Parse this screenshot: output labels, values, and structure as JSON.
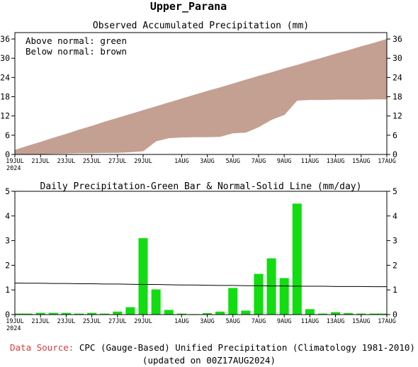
{
  "page": {
    "region_title": "Upper_Parana",
    "footer_source_label": "Data Source:",
    "footer_source_text": "CPC (Gauge-Based) Unified Precipitation (Climatology 1981-2010)",
    "footer_updated": "(updated on 00Z17AUG2024)"
  },
  "colors": {
    "above_normal": "#00dd00",
    "below_normal": "#c4a092",
    "daily_bar": "#11dd11",
    "normal_line": "#000000",
    "source_label": "#e03a3a"
  },
  "chart_data": [
    {
      "type": "area",
      "title": "Observed Accumulated Precipitation (mm)",
      "legend_lines": [
        "Above normal: green",
        "Below normal: brown"
      ],
      "legend_position": "top-left",
      "x_ticks": [
        "19JUL",
        "21JUL",
        "23JUL",
        "25JUL",
        "27JUL",
        "29JUL",
        "1AUG",
        "3AUG",
        "5AUG",
        "7AUG",
        "9AUG",
        "11AUG",
        "13AUG",
        "15AUG",
        "17AUG"
      ],
      "x_year_label": "2024",
      "ylim": [
        0,
        38
      ],
      "y_ticks": [
        0,
        6,
        12,
        18,
        24,
        30,
        36
      ],
      "grid": false,
      "x": [
        "19JUL",
        "20JUL",
        "21JUL",
        "22JUL",
        "23JUL",
        "24JUL",
        "25JUL",
        "26JUL",
        "27JUL",
        "28JUL",
        "29JUL",
        "30JUL",
        "31JUL",
        "1AUG",
        "2AUG",
        "3AUG",
        "4AUG",
        "5AUG",
        "6AUG",
        "7AUG",
        "8AUG",
        "9AUG",
        "10AUG",
        "11AUG",
        "12AUG",
        "13AUG",
        "14AUG",
        "15AUG",
        "16AUG",
        "17AUG"
      ],
      "series": [
        {
          "name": "Observed",
          "values": [
            0.1,
            0.1,
            0.2,
            0.3,
            0.4,
            0.5,
            0.5,
            0.6,
            0.6,
            0.8,
            1.1,
            4.2,
            5.2,
            5.4,
            5.5,
            5.5,
            5.6,
            6.7,
            6.9,
            8.6,
            10.9,
            12.4,
            16.9,
            17.1,
            17.1,
            17.2,
            17.2,
            17.2,
            17.3,
            17.3
          ]
        },
        {
          "name": "Normal",
          "values": [
            1.3,
            2.6,
            3.8,
            5.1,
            6.3,
            7.6,
            8.8,
            10.1,
            11.3,
            12.5,
            13.7,
            14.9,
            16.1,
            17.3,
            18.5,
            19.7,
            20.8,
            22.0,
            23.2,
            24.4,
            25.5,
            26.7,
            27.8,
            29.0,
            30.1,
            31.3,
            32.4,
            33.6,
            34.7,
            35.9
          ]
        }
      ]
    },
    {
      "type": "bar",
      "title": "Daily Precipitation-Green Bar & Normal-Solid Line (mm/day)",
      "x_ticks": [
        "19JUL",
        "21JUL",
        "23JUL",
        "25JUL",
        "27JUL",
        "29JUL",
        "1AUG",
        "3AUG",
        "5AUG",
        "7AUG",
        "9AUG",
        "11AUG",
        "13AUG",
        "15AUG",
        "17AUG"
      ],
      "x_year_label": "2024",
      "ylim": [
        0,
        5
      ],
      "y_ticks": [
        0,
        1,
        2,
        3,
        4,
        5
      ],
      "grid": false,
      "categories": [
        "19JUL",
        "20JUL",
        "21JUL",
        "22JUL",
        "23JUL",
        "24JUL",
        "25JUL",
        "26JUL",
        "27JUL",
        "28JUL",
        "29JUL",
        "30JUL",
        "31JUL",
        "1AUG",
        "2AUG",
        "3AUG",
        "4AUG",
        "5AUG",
        "6AUG",
        "7AUG",
        "8AUG",
        "9AUG",
        "10AUG",
        "11AUG",
        "12AUG",
        "13AUG",
        "14AUG",
        "15AUG",
        "16AUG",
        "17AUG"
      ],
      "series": [
        {
          "name": "Daily Precipitation",
          "values": [
            0.04,
            0.04,
            0.07,
            0.07,
            0.07,
            0.04,
            0.07,
            0.04,
            0.12,
            0.3,
            3.1,
            1.02,
            0.19,
            0.04,
            0.02,
            0.06,
            0.12,
            1.08,
            0.16,
            1.65,
            2.28,
            1.48,
            4.5,
            0.22,
            0.04,
            0.1,
            0.06,
            0.04,
            0.04,
            0.04
          ]
        },
        {
          "name": "Normal",
          "type": "line",
          "values": [
            1.28,
            1.27,
            1.27,
            1.26,
            1.26,
            1.25,
            1.25,
            1.24,
            1.24,
            1.23,
            1.22,
            1.22,
            1.21,
            1.2,
            1.2,
            1.19,
            1.18,
            1.18,
            1.17,
            1.17,
            1.16,
            1.16,
            1.15,
            1.15,
            1.15,
            1.14,
            1.14,
            1.14,
            1.13,
            1.13
          ]
        }
      ]
    }
  ]
}
